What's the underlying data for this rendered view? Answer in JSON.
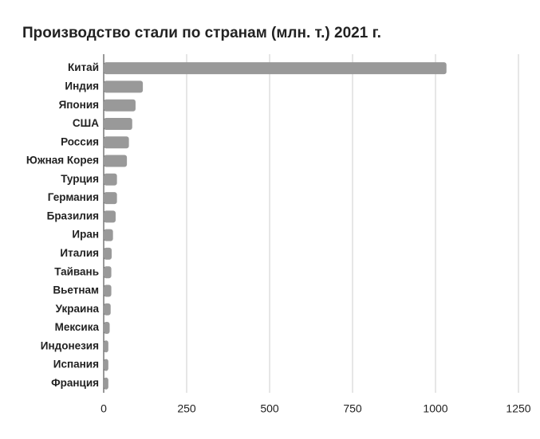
{
  "chart_data": {
    "type": "barh",
    "title": "Производство стали по странам (млн. т.) 2021 г.",
    "categories": [
      "Китай",
      "Индия",
      "Япония",
      "США",
      "Россия",
      "Южная Корея",
      "Турция",
      "Германия",
      "Бразилия",
      "Иран",
      "Италия",
      "Тайвань",
      "Вьетнам",
      "Украина",
      "Мексика",
      "Индонезия",
      "Испания",
      "Франция"
    ],
    "values": [
      1033,
      118,
      96,
      86,
      76,
      70,
      40,
      40,
      36,
      28,
      24,
      23,
      23,
      21,
      18,
      14,
      14,
      14
    ],
    "color": "#999999",
    "xlim": [
      0,
      1250
    ],
    "xticks": [
      0,
      250,
      500,
      750,
      1000,
      1250
    ],
    "grid": true
  }
}
